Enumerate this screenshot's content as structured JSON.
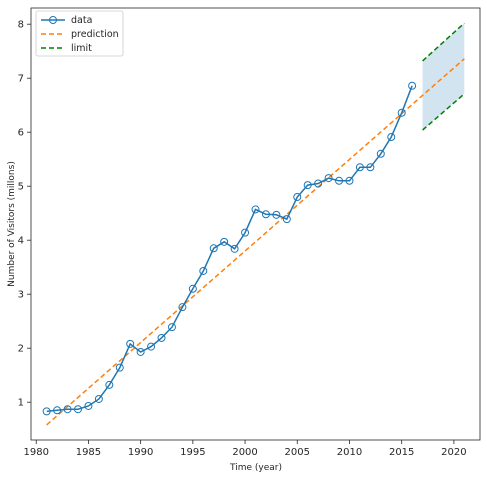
{
  "chart_data": {
    "type": "line",
    "xlabel": "Time (year)",
    "ylabel": "Number of Visitors (millons)",
    "xlim": [
      1979.5,
      2022.5
    ],
    "ylim": [
      0.3,
      8.3
    ],
    "xticks": [
      1980,
      1985,
      1990,
      1995,
      2000,
      2005,
      2010,
      2015,
      2020
    ],
    "yticks": [
      1,
      2,
      3,
      4,
      5,
      6,
      7,
      8
    ],
    "grid": false,
    "legend_position": "top-left",
    "legend": [
      "data",
      "prediction",
      "limit"
    ],
    "series": [
      {
        "name": "data",
        "style": "line-with-circle-markers",
        "color": "#1f77b4",
        "x": [
          1981,
          1982,
          1983,
          1984,
          1985,
          1986,
          1987,
          1988,
          1989,
          1990,
          1991,
          1992,
          1993,
          1994,
          1995,
          1996,
          1997,
          1998,
          1999,
          2000,
          2001,
          2002,
          2003,
          2004,
          2005,
          2006,
          2007,
          2008,
          2009,
          2010,
          2011,
          2012,
          2013,
          2014,
          2015,
          2016
        ],
        "y": [
          0.83,
          0.85,
          0.87,
          0.87,
          0.93,
          1.06,
          1.32,
          1.64,
          2.08,
          1.93,
          2.03,
          2.19,
          2.39,
          2.76,
          3.1,
          3.43,
          3.85,
          3.97,
          3.84,
          4.14,
          4.57,
          4.48,
          4.47,
          4.39,
          4.8,
          5.02,
          5.05,
          5.15,
          5.1,
          5.1,
          5.35,
          5.35,
          5.6,
          5.91,
          6.36,
          6.86
        ]
      },
      {
        "name": "prediction",
        "style": "dashed",
        "color": "#ff7f0e",
        "x": [
          1981,
          2021
        ],
        "y": [
          0.58,
          7.36
        ]
      },
      {
        "name": "limit",
        "style": "dashed",
        "color": "#008000",
        "x": [
          2017,
          2021
        ],
        "y_upper": [
          7.32,
          8.02
        ],
        "y_lower": [
          6.04,
          6.71
        ]
      }
    ],
    "band_color": "#1f77b4"
  }
}
